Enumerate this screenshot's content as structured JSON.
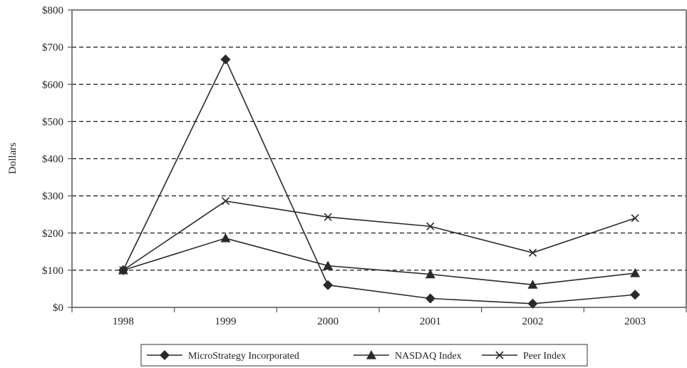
{
  "chart_data": {
    "type": "line",
    "title": "",
    "xlabel": "",
    "ylabel": "Dollars",
    "categories": [
      "1998",
      "1999",
      "2000",
      "2001",
      "2002",
      "2003"
    ],
    "ylim": [
      0,
      800
    ],
    "yticks": [
      0,
      100,
      200,
      300,
      400,
      500,
      600,
      700,
      800
    ],
    "ytick_labels": [
      "$0",
      "$100",
      "$200",
      "$300",
      "$400",
      "$500",
      "$600",
      "$700",
      "$800"
    ],
    "grid": "horizontal dashed",
    "legend_position": "bottom",
    "series": [
      {
        "name": "MicroStrategy Incorporated",
        "marker": "diamond",
        "values": [
          100,
          667,
          60,
          24,
          10,
          34
        ]
      },
      {
        "name": "NASDAQ Index",
        "marker": "triangle",
        "values": [
          100,
          186,
          112,
          89,
          61,
          92
        ]
      },
      {
        "name": "Peer Index",
        "marker": "x",
        "values": [
          100,
          286,
          243,
          218,
          147,
          240
        ]
      }
    ]
  },
  "colors": {
    "line": "#2a2a2a",
    "grid": "#1a1a1a",
    "axis": "#555555"
  }
}
